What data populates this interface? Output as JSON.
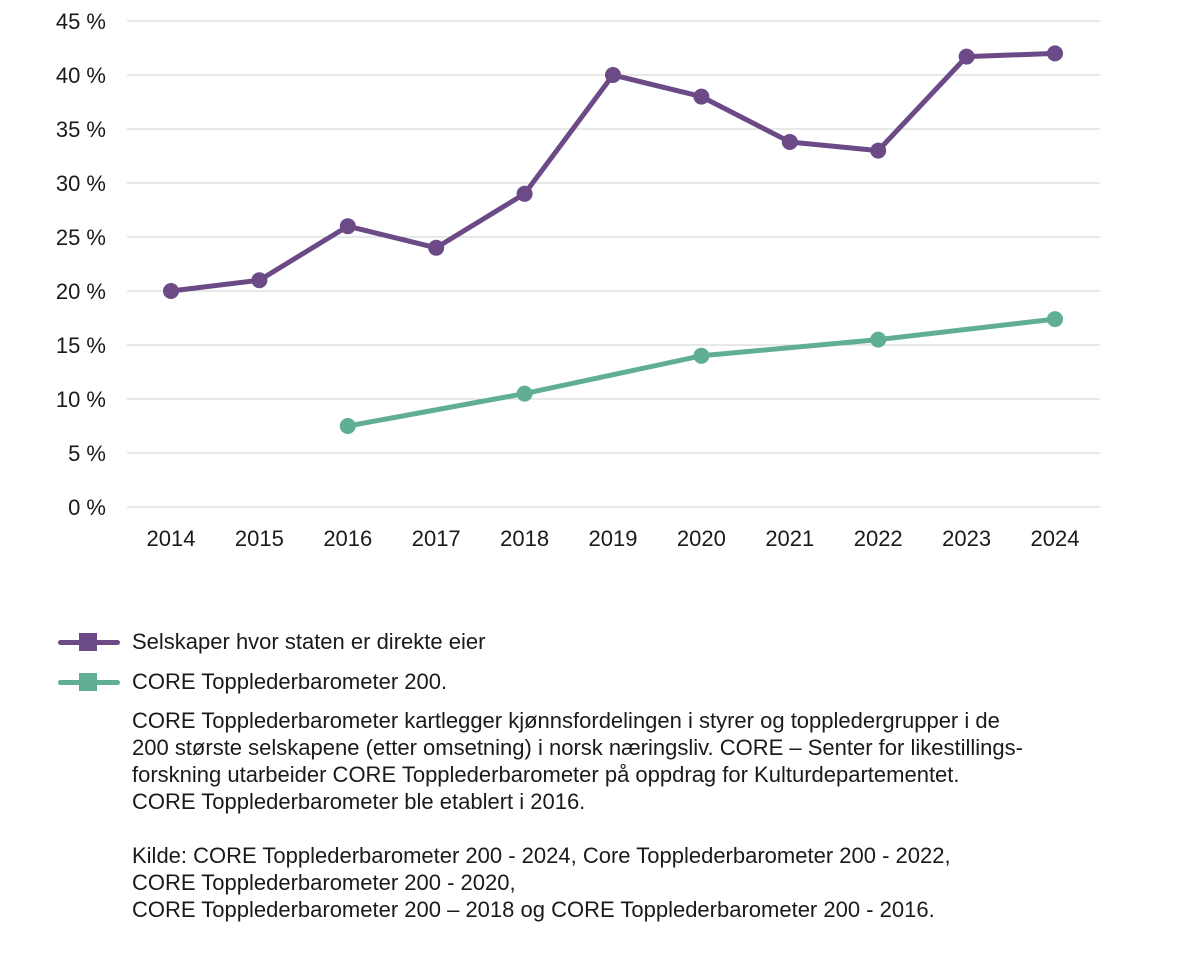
{
  "chart_data": {
    "type": "line",
    "title": "",
    "xlabel": "",
    "ylabel": "",
    "categories": [
      "2014",
      "2015",
      "2016",
      "2017",
      "2018",
      "2019",
      "2020",
      "2021",
      "2022",
      "2023",
      "2024"
    ],
    "ylim": [
      0,
      45
    ],
    "yticks": [
      0,
      5,
      10,
      15,
      20,
      25,
      30,
      35,
      40,
      45
    ],
    "ytick_labels": [
      "0 %",
      "5 %",
      "10 %",
      "15 %",
      "20 %",
      "25 %",
      "30 %",
      "35 %",
      "40 %",
      "45 %"
    ],
    "grid": true,
    "legend_position": "bottom-left",
    "series": [
      {
        "name": "Selskaper hvor staten er direkte eier",
        "color": "#6b4a87",
        "values": [
          20,
          21,
          26,
          24,
          29,
          40,
          38,
          33.8,
          33,
          41.7,
          42
        ]
      },
      {
        "name": "CORE Topplederbarometer 200.",
        "color": "#5fae95",
        "values": [
          null,
          null,
          7.5,
          null,
          10.5,
          null,
          14,
          null,
          15.5,
          null,
          17.4
        ]
      }
    ]
  },
  "notes": {
    "description_lines": [
      "CORE Topplederbarometer kartlegger kjønnsfordelingen i styrer og toppledergrupper i de",
      "200 største selskapene (etter omsetning) i norsk næringsliv. CORE – Senter for likestillings-",
      "forskning utarbeider CORE Topplederbarometer på oppdrag for Kulturdepartementet.",
      "CORE Topplederbarometer ble etablert i 2016."
    ],
    "source_lines": [
      "Kilde: CORE Topplederbarometer 200 - 2024, Core Topplederbarometer 200 - 2022,",
      "CORE Topplederbarometer 200 - 2020,",
      "CORE Topplederbarometer 200 – 2018 og CORE Topplederbarometer 200 - 2016."
    ]
  }
}
